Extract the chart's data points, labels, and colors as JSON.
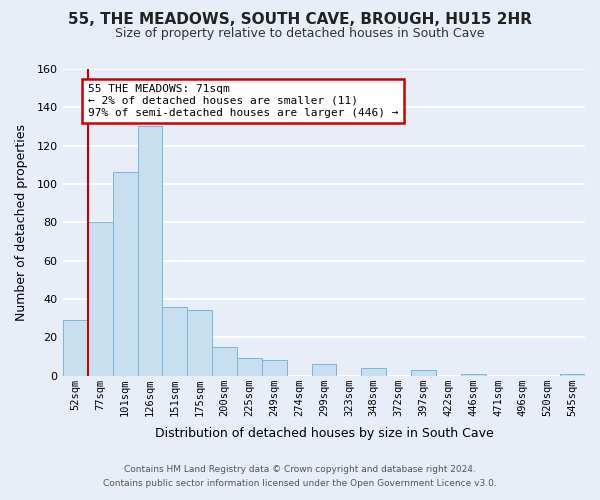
{
  "title": "55, THE MEADOWS, SOUTH CAVE, BROUGH, HU15 2HR",
  "subtitle": "Size of property relative to detached houses in South Cave",
  "xlabel": "Distribution of detached houses by size in South Cave",
  "ylabel": "Number of detached properties",
  "bar_labels": [
    "52sqm",
    "77sqm",
    "101sqm",
    "126sqm",
    "151sqm",
    "175sqm",
    "200sqm",
    "225sqm",
    "249sqm",
    "274sqm",
    "299sqm",
    "323sqm",
    "348sqm",
    "372sqm",
    "397sqm",
    "422sqm",
    "446sqm",
    "471sqm",
    "496sqm",
    "520sqm",
    "545sqm"
  ],
  "bar_heights": [
    29,
    80,
    106,
    130,
    36,
    34,
    15,
    9,
    8,
    0,
    6,
    0,
    4,
    0,
    3,
    0,
    1,
    0,
    0,
    0,
    1
  ],
  "bar_color": "#c8dff0",
  "bar_edge_color": "#7ab5d8",
  "highlight_bar_index": 1,
  "highlight_color": "#cc0000",
  "annotation_text": "55 THE MEADOWS: 71sqm\n← 2% of detached houses are smaller (11)\n97% of semi-detached houses are larger (446) →",
  "annotation_box_color": "#ffffff",
  "annotation_box_edge_color": "#cc0000",
  "ylim": [
    0,
    160
  ],
  "yticks": [
    0,
    20,
    40,
    60,
    80,
    100,
    120,
    140,
    160
  ],
  "footer_line1": "Contains HM Land Registry data © Crown copyright and database right 2024.",
  "footer_line2": "Contains public sector information licensed under the Open Government Licence v3.0.",
  "fig_background_color": "#e8eef8",
  "plot_background_color": "#e8eef8",
  "grid_color": "#ffffff"
}
